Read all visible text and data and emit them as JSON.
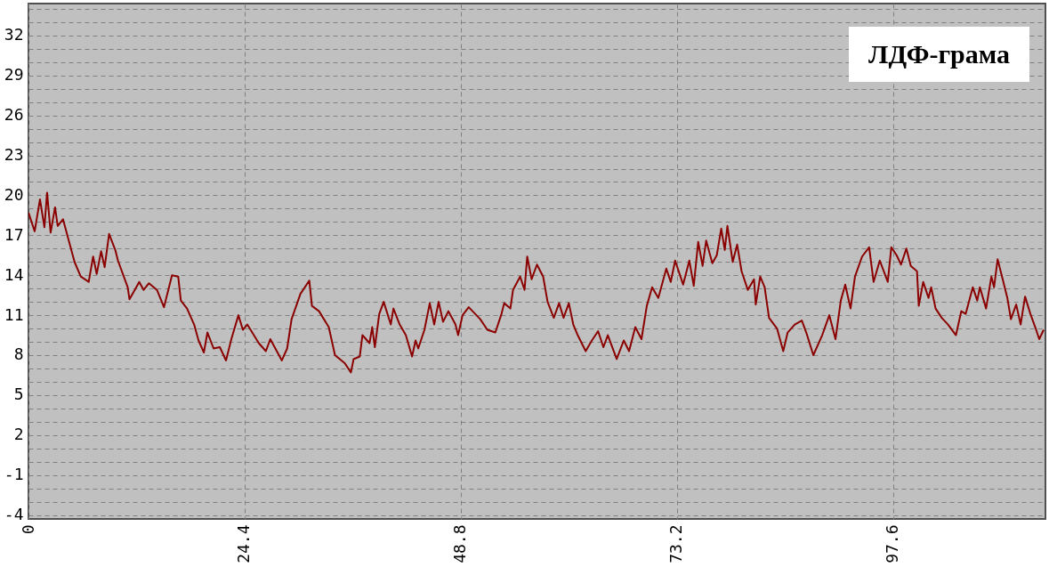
{
  "chart_data": {
    "type": "line",
    "annotations": [
      "ЛДФ-грама"
    ],
    "x": [
      0.0,
      0.7,
      1.3,
      1.8,
      2.1,
      2.5,
      3.0,
      3.3,
      3.9,
      5.2,
      5.9,
      6.8,
      7.3,
      7.7,
      8.2,
      8.6,
      9.1,
      9.8,
      10.1,
      11.2,
      11.4,
      12.0,
      12.5,
      13.0,
      13.6,
      14.5,
      15.3,
      16.2,
      16.9,
      17.2,
      17.9,
      18.7,
      19.2,
      19.8,
      20.2,
      20.9,
      21.6,
      22.3,
      22.9,
      23.7,
      24.2,
      24.7,
      26.0,
      26.8,
      27.3,
      28.6,
      29.2,
      29.7,
      30.7,
      31.7,
      32.0,
      32.8,
      33.9,
      34.6,
      35.7,
      36.4,
      36.7,
      37.4,
      37.7,
      38.5,
      38.8,
      39.1,
      39.6,
      40.1,
      40.9,
      41.2,
      41.9,
      42.6,
      43.3,
      43.7,
      44.0,
      44.7,
      45.3,
      45.8,
      46.3,
      46.8,
      47.4,
      48.2,
      48.5,
      49.0,
      49.7,
      51.0,
      51.8,
      52.7,
      53.4,
      53.7,
      54.4,
      54.7,
      55.5,
      56.0,
      56.3,
      56.8,
      57.4,
      58.1,
      58.6,
      59.3,
      59.9,
      60.4,
      61.0,
      61.5,
      62.0,
      62.9,
      63.6,
      64.3,
      64.9,
      65.4,
      66.4,
      67.2,
      67.8,
      68.5,
      69.2,
      69.8,
      70.4,
      71.1,
      72.0,
      72.5,
      73.0,
      73.9,
      74.6,
      75.1,
      75.6,
      76.1,
      76.5,
      77.2,
      77.7,
      78.2,
      78.6,
      78.9,
      79.5,
      80.0,
      80.5,
      81.2,
      81.9,
      82.1,
      82.6,
      83.1,
      83.6,
      84.5,
      85.2,
      85.7,
      86.5,
      87.3,
      87.8,
      88.6,
      89.6,
      90.4,
      91.1,
      91.7,
      92.2,
      92.8,
      93.3,
      94.1,
      94.9,
      95.4,
      96.1,
      97.0,
      97.4,
      98.0,
      98.5,
      99.1,
      99.6,
      100.3,
      100.5,
      101.0,
      101.6,
      101.9,
      102.4,
      103.1,
      103.8,
      104.7,
      105.3,
      105.8,
      106.6,
      107.1,
      107.4,
      108.1,
      108.7,
      109.0,
      109.4,
      109.9,
      110.5,
      110.9,
      111.5,
      112.0,
      112.5,
      113.1,
      113.7,
      114.1,
      114.6
    ],
    "series": [
      {
        "color": "#8b0000",
        "values": [
          18.7,
          17.3,
          19.7,
          17.6,
          20.2,
          17.2,
          19.1,
          17.7,
          18.2,
          15.0,
          13.9,
          13.5,
          15.4,
          14.1,
          15.8,
          14.6,
          17.1,
          15.9,
          15.1,
          13.1,
          12.2,
          12.9,
          13.5,
          12.9,
          13.4,
          12.9,
          11.6,
          14.0,
          13.9,
          12.1,
          11.5,
          10.3,
          9.1,
          8.2,
          9.7,
          8.5,
          8.6,
          7.6,
          9.2,
          11.0,
          9.9,
          10.3,
          8.9,
          8.3,
          9.2,
          7.6,
          8.5,
          10.7,
          12.6,
          13.6,
          11.7,
          11.3,
          10.1,
          8.0,
          7.4,
          6.7,
          7.7,
          7.9,
          9.5,
          8.9,
          10.1,
          8.6,
          11.1,
          12.0,
          10.3,
          11.5,
          10.3,
          9.5,
          7.9,
          9.1,
          8.5,
          9.9,
          11.9,
          10.3,
          12.0,
          10.5,
          11.3,
          10.3,
          9.5,
          11.0,
          11.6,
          10.7,
          9.9,
          9.7,
          11.1,
          11.9,
          11.5,
          12.9,
          13.9,
          12.9,
          15.4,
          13.7,
          14.8,
          13.9,
          12.0,
          10.8,
          11.9,
          10.8,
          11.9,
          10.3,
          9.5,
          8.3,
          9.1,
          9.8,
          8.6,
          9.5,
          7.7,
          9.1,
          8.3,
          10.1,
          9.2,
          11.7,
          13.1,
          12.3,
          14.5,
          13.5,
          15.1,
          13.3,
          15.1,
          13.2,
          16.5,
          14.7,
          16.6,
          14.9,
          15.5,
          17.5,
          15.9,
          17.7,
          15.0,
          16.3,
          14.3,
          12.9,
          13.7,
          11.8,
          13.9,
          13.1,
          10.8,
          10.0,
          8.3,
          9.7,
          10.3,
          10.6,
          9.7,
          8.0,
          9.5,
          11.0,
          9.2,
          12.1,
          13.3,
          11.5,
          13.9,
          15.4,
          16.1,
          13.5,
          15.1,
          13.5,
          16.1,
          15.5,
          14.8,
          16.0,
          14.7,
          14.3,
          11.7,
          13.5,
          12.3,
          13.1,
          11.5,
          10.8,
          10.3,
          9.5,
          11.3,
          11.1,
          13.1,
          12.1,
          13.1,
          11.5,
          13.9,
          13.1,
          15.2,
          13.9,
          12.3,
          10.7,
          11.8,
          10.3,
          12.4,
          11.1,
          10.0,
          9.2,
          9.9
        ]
      }
    ],
    "xlim": [
      0,
      114.8
    ],
    "ylim": [
      -4.3,
      34.4
    ],
    "xticks": [
      0,
      24.4,
      48.8,
      73.2,
      97.6
    ],
    "yticks": [
      -4,
      {
        "value": -3,
        "label": null
      },
      {
        "value": -2,
        "label": null
      },
      -1,
      {
        "value": 0,
        "label": null
      },
      {
        "value": 1,
        "label": null
      },
      2,
      {
        "value": 3,
        "label": null
      },
      {
        "value": 4,
        "label": null
      },
      5,
      {
        "value": 6,
        "label": null
      },
      {
        "value": 7,
        "label": null
      },
      8,
      {
        "value": 9,
        "label": null
      },
      {
        "value": 10,
        "label": null
      },
      11,
      {
        "value": 12,
        "label": null
      },
      {
        "value": 13,
        "label": null
      },
      14,
      {
        "value": 15,
        "label": null
      },
      {
        "value": 16,
        "label": null
      },
      17,
      {
        "value": 18,
        "label": null
      },
      {
        "value": 19,
        "label": null
      },
      20,
      {
        "value": 21,
        "label": null
      },
      {
        "value": 22,
        "label": null
      },
      23,
      {
        "value": 24,
        "label": null
      },
      {
        "value": 25,
        "label": null
      },
      26,
      {
        "value": 27,
        "label": null
      },
      {
        "value": 28,
        "label": null
      },
      29,
      {
        "value": 30,
        "label": null
      },
      {
        "value": 31,
        "label": null
      },
      32,
      {
        "value": 33,
        "label": null
      },
      {
        "value": 34,
        "label": null
      }
    ],
    "grid": true
  }
}
